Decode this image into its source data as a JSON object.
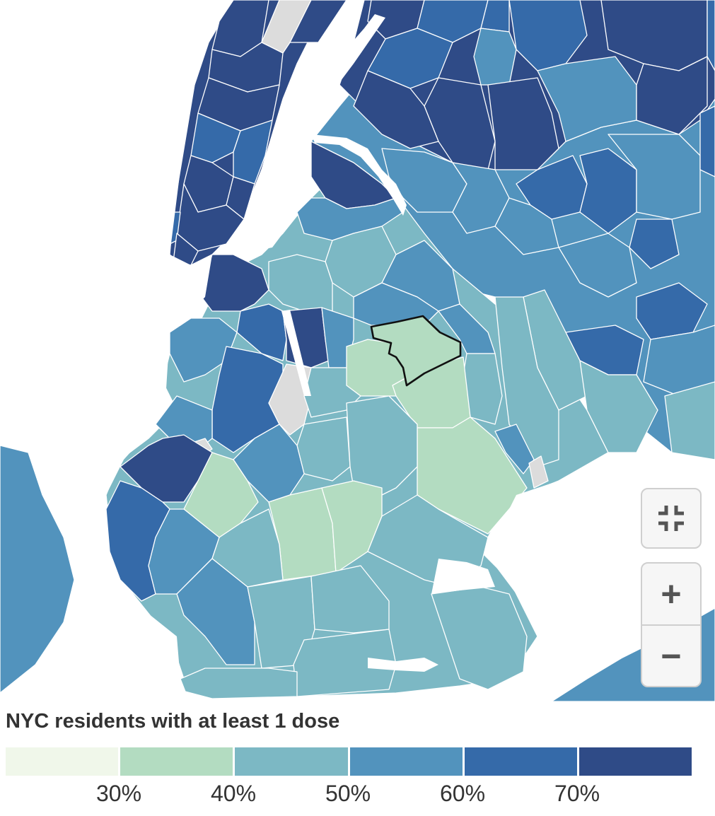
{
  "legend": {
    "title": "NYC residents with at least 1 dose",
    "bins": [
      {
        "color": "#f0f7ea",
        "min": 20,
        "max": 30
      },
      {
        "color": "#b3dcc1",
        "min": 30,
        "max": 40
      },
      {
        "color": "#7cb8c4",
        "min": 40,
        "max": 50
      },
      {
        "color": "#5293bd",
        "min": 50,
        "max": 60
      },
      {
        "color": "#356aa9",
        "min": 60,
        "max": 70
      },
      {
        "color": "#2f4b87",
        "min": 70,
        "max": 80
      }
    ],
    "ticks": [
      "30%",
      "40%",
      "50%",
      "60%",
      "70%"
    ],
    "no_data_color": "#dcdcdc"
  },
  "map": {
    "highlight_stroke": "#111111",
    "background": "#ffffff"
  },
  "controls": {
    "fullscreen_icon": "exit-fullscreen-icon",
    "zoom_in_label": "+",
    "zoom_out_label": "−"
  }
}
